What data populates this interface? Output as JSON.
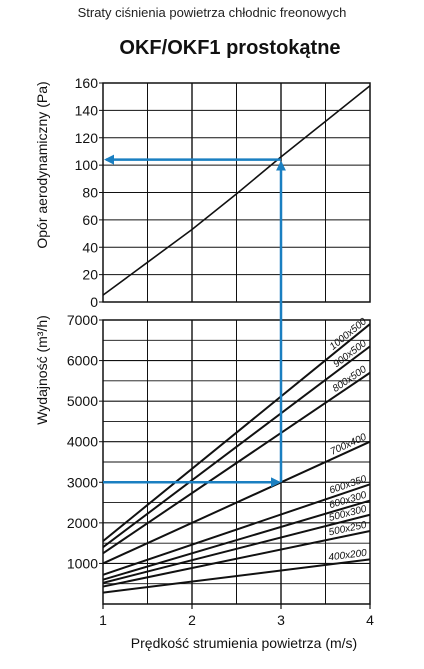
{
  "header": {
    "supertitle": "Straty ciśnienia powietrza chłodnic freonowych",
    "title": "OKF/OKF1 prostokątne"
  },
  "colors": {
    "line": "#111111",
    "grid": "#111111",
    "arrow": "#1a7fc1",
    "background": "#ffffff"
  },
  "chart_data": [
    {
      "type": "line",
      "panel": "top",
      "ylabel": "Opór aerodynamiczny (Pa)",
      "xlim": [
        1,
        4
      ],
      "ylim": [
        0,
        160
      ],
      "yticks": [
        0,
        20,
        40,
        60,
        80,
        100,
        120,
        140,
        160
      ],
      "grid": true,
      "series": [
        {
          "x": [
            1,
            1.5,
            2,
            2.5,
            3,
            3.5,
            4
          ],
          "values": [
            5,
            29,
            53,
            79,
            106,
            132,
            158
          ]
        }
      ],
      "annotation": {
        "x": 3,
        "y": 104
      }
    },
    {
      "type": "line",
      "panel": "bottom",
      "xlabel": "Prędkość strumienia powietrza (m/s)",
      "ylabel": "Wydajność (m³/h)",
      "xlim": [
        1,
        4
      ],
      "ylim": [
        0,
        7000
      ],
      "xticks": [
        "1",
        "2",
        "3",
        "4"
      ],
      "yticks": [
        1000,
        2000,
        3000,
        4000,
        5000,
        6000,
        7000
      ],
      "grid": true,
      "series": [
        {
          "name": "1000x500",
          "x": [
            1,
            4
          ],
          "values": [
            1550,
            6900
          ]
        },
        {
          "name": "900x500",
          "x": [
            1,
            4
          ],
          "values": [
            1400,
            6350
          ]
        },
        {
          "name": "800x500",
          "x": [
            1,
            4
          ],
          "values": [
            1250,
            5700
          ]
        },
        {
          "name": "700x400",
          "x": [
            1,
            4
          ],
          "values": [
            1000,
            4000
          ]
        },
        {
          "name": "600x350",
          "x": [
            1,
            4
          ],
          "values": [
            720,
            2950
          ]
        },
        {
          "name": "600x300",
          "x": [
            1,
            4
          ],
          "values": [
            600,
            2550
          ]
        },
        {
          "name": "500x300",
          "x": [
            1,
            4
          ],
          "values": [
            520,
            2200
          ]
        },
        {
          "name": "500x250",
          "x": [
            1,
            4
          ],
          "values": [
            430,
            1800
          ]
        },
        {
          "name": "400x200",
          "x": [
            1,
            4
          ],
          "values": [
            280,
            1100
          ]
        }
      ],
      "annotation": {
        "x": 3,
        "y": 3000
      }
    }
  ]
}
